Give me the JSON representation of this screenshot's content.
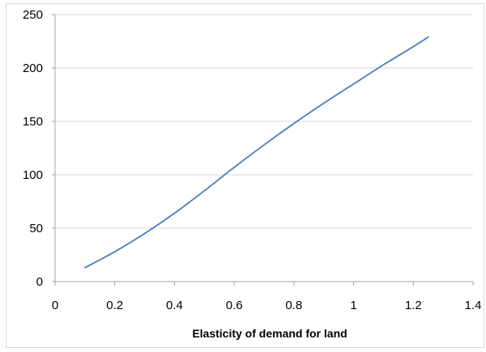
{
  "chart_data": {
    "type": "line",
    "title": "",
    "xlabel": "Elasticity of demand for land",
    "ylabel": "",
    "xlim": [
      0,
      1.4
    ],
    "ylim": [
      0,
      250
    ],
    "x_ticks": [
      "0",
      "0.2",
      "0.4",
      "0.6",
      "0.8",
      "1",
      "1.2",
      "1.4"
    ],
    "y_ticks": [
      "0",
      "50",
      "100",
      "150",
      "200",
      "250"
    ],
    "grid": "horizontal",
    "legend": "none",
    "series": [
      {
        "color": "#4a7ebb",
        "x": [
          0.1,
          0.2,
          0.3,
          0.4,
          0.5,
          0.6,
          0.7,
          0.8,
          0.9,
          1.0,
          1.1,
          1.2,
          1.25
        ],
        "y": [
          13,
          28,
          45,
          64,
          85,
          107,
          128,
          148,
          167,
          185,
          203,
          220,
          229
        ]
      }
    ]
  }
}
